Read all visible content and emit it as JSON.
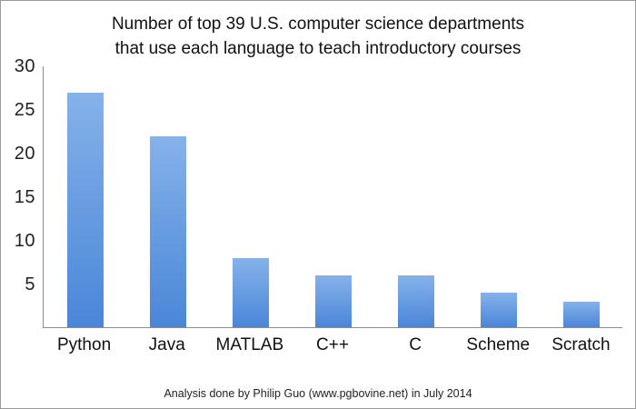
{
  "title": {
    "line1": "Number of top 39 U.S. computer science departments",
    "line2": "that use each language to teach introductory courses"
  },
  "footer": "Analysis done by Philip Guo (www.pgbovine.net) in July 2014",
  "chart_data": {
    "type": "bar",
    "title": "Number of top 39 U.S. computer science departments that use each language to teach introductory courses",
    "categories": [
      "Python",
      "Java",
      "MATLAB",
      "C++",
      "C",
      "Scheme",
      "Scratch"
    ],
    "values": [
      27,
      22,
      8,
      6,
      6,
      4,
      3
    ],
    "xlabel": "",
    "ylabel": "",
    "ylim": [
      0,
      30
    ],
    "yticks": [
      5,
      10,
      15,
      20,
      25,
      30
    ],
    "grid": false,
    "legend": "none",
    "bar_color_top": "#85b2ea",
    "bar_color_bottom": "#4a86d8",
    "axis_color": "#8c8c8c"
  }
}
